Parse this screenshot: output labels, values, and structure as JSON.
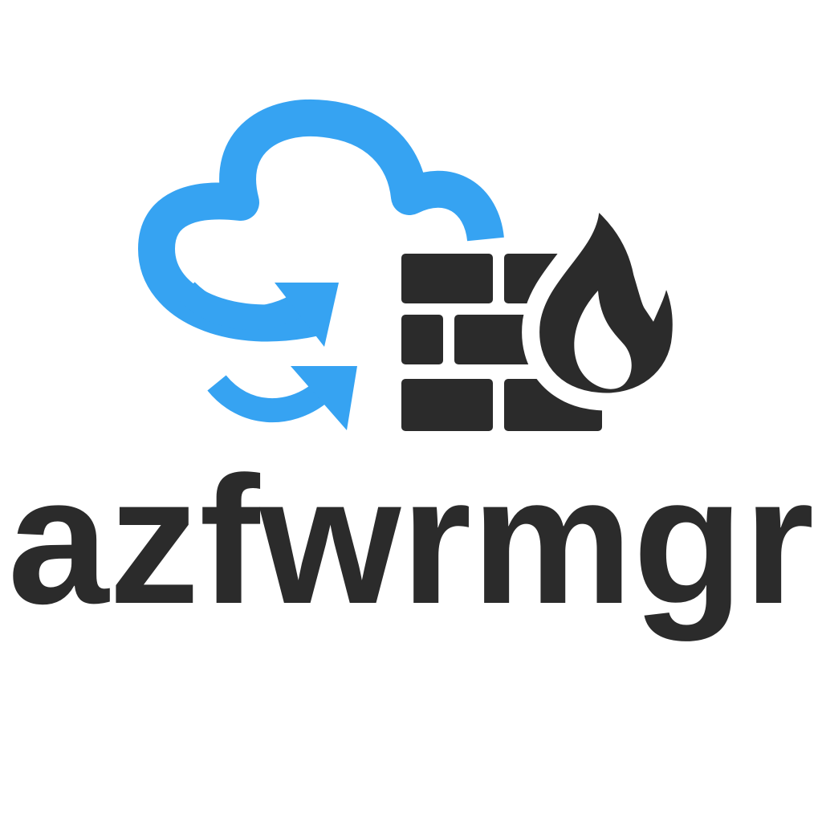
{
  "logo": {
    "name": "azfwrmgr",
    "icons": [
      "cloud-icon",
      "sync-arrows-icon",
      "brick-wall-icon",
      "flame-icon"
    ],
    "colors": {
      "cloud": "#36A3F2",
      "dark": "#2B2B2B",
      "background": "#FFFFFF"
    }
  }
}
